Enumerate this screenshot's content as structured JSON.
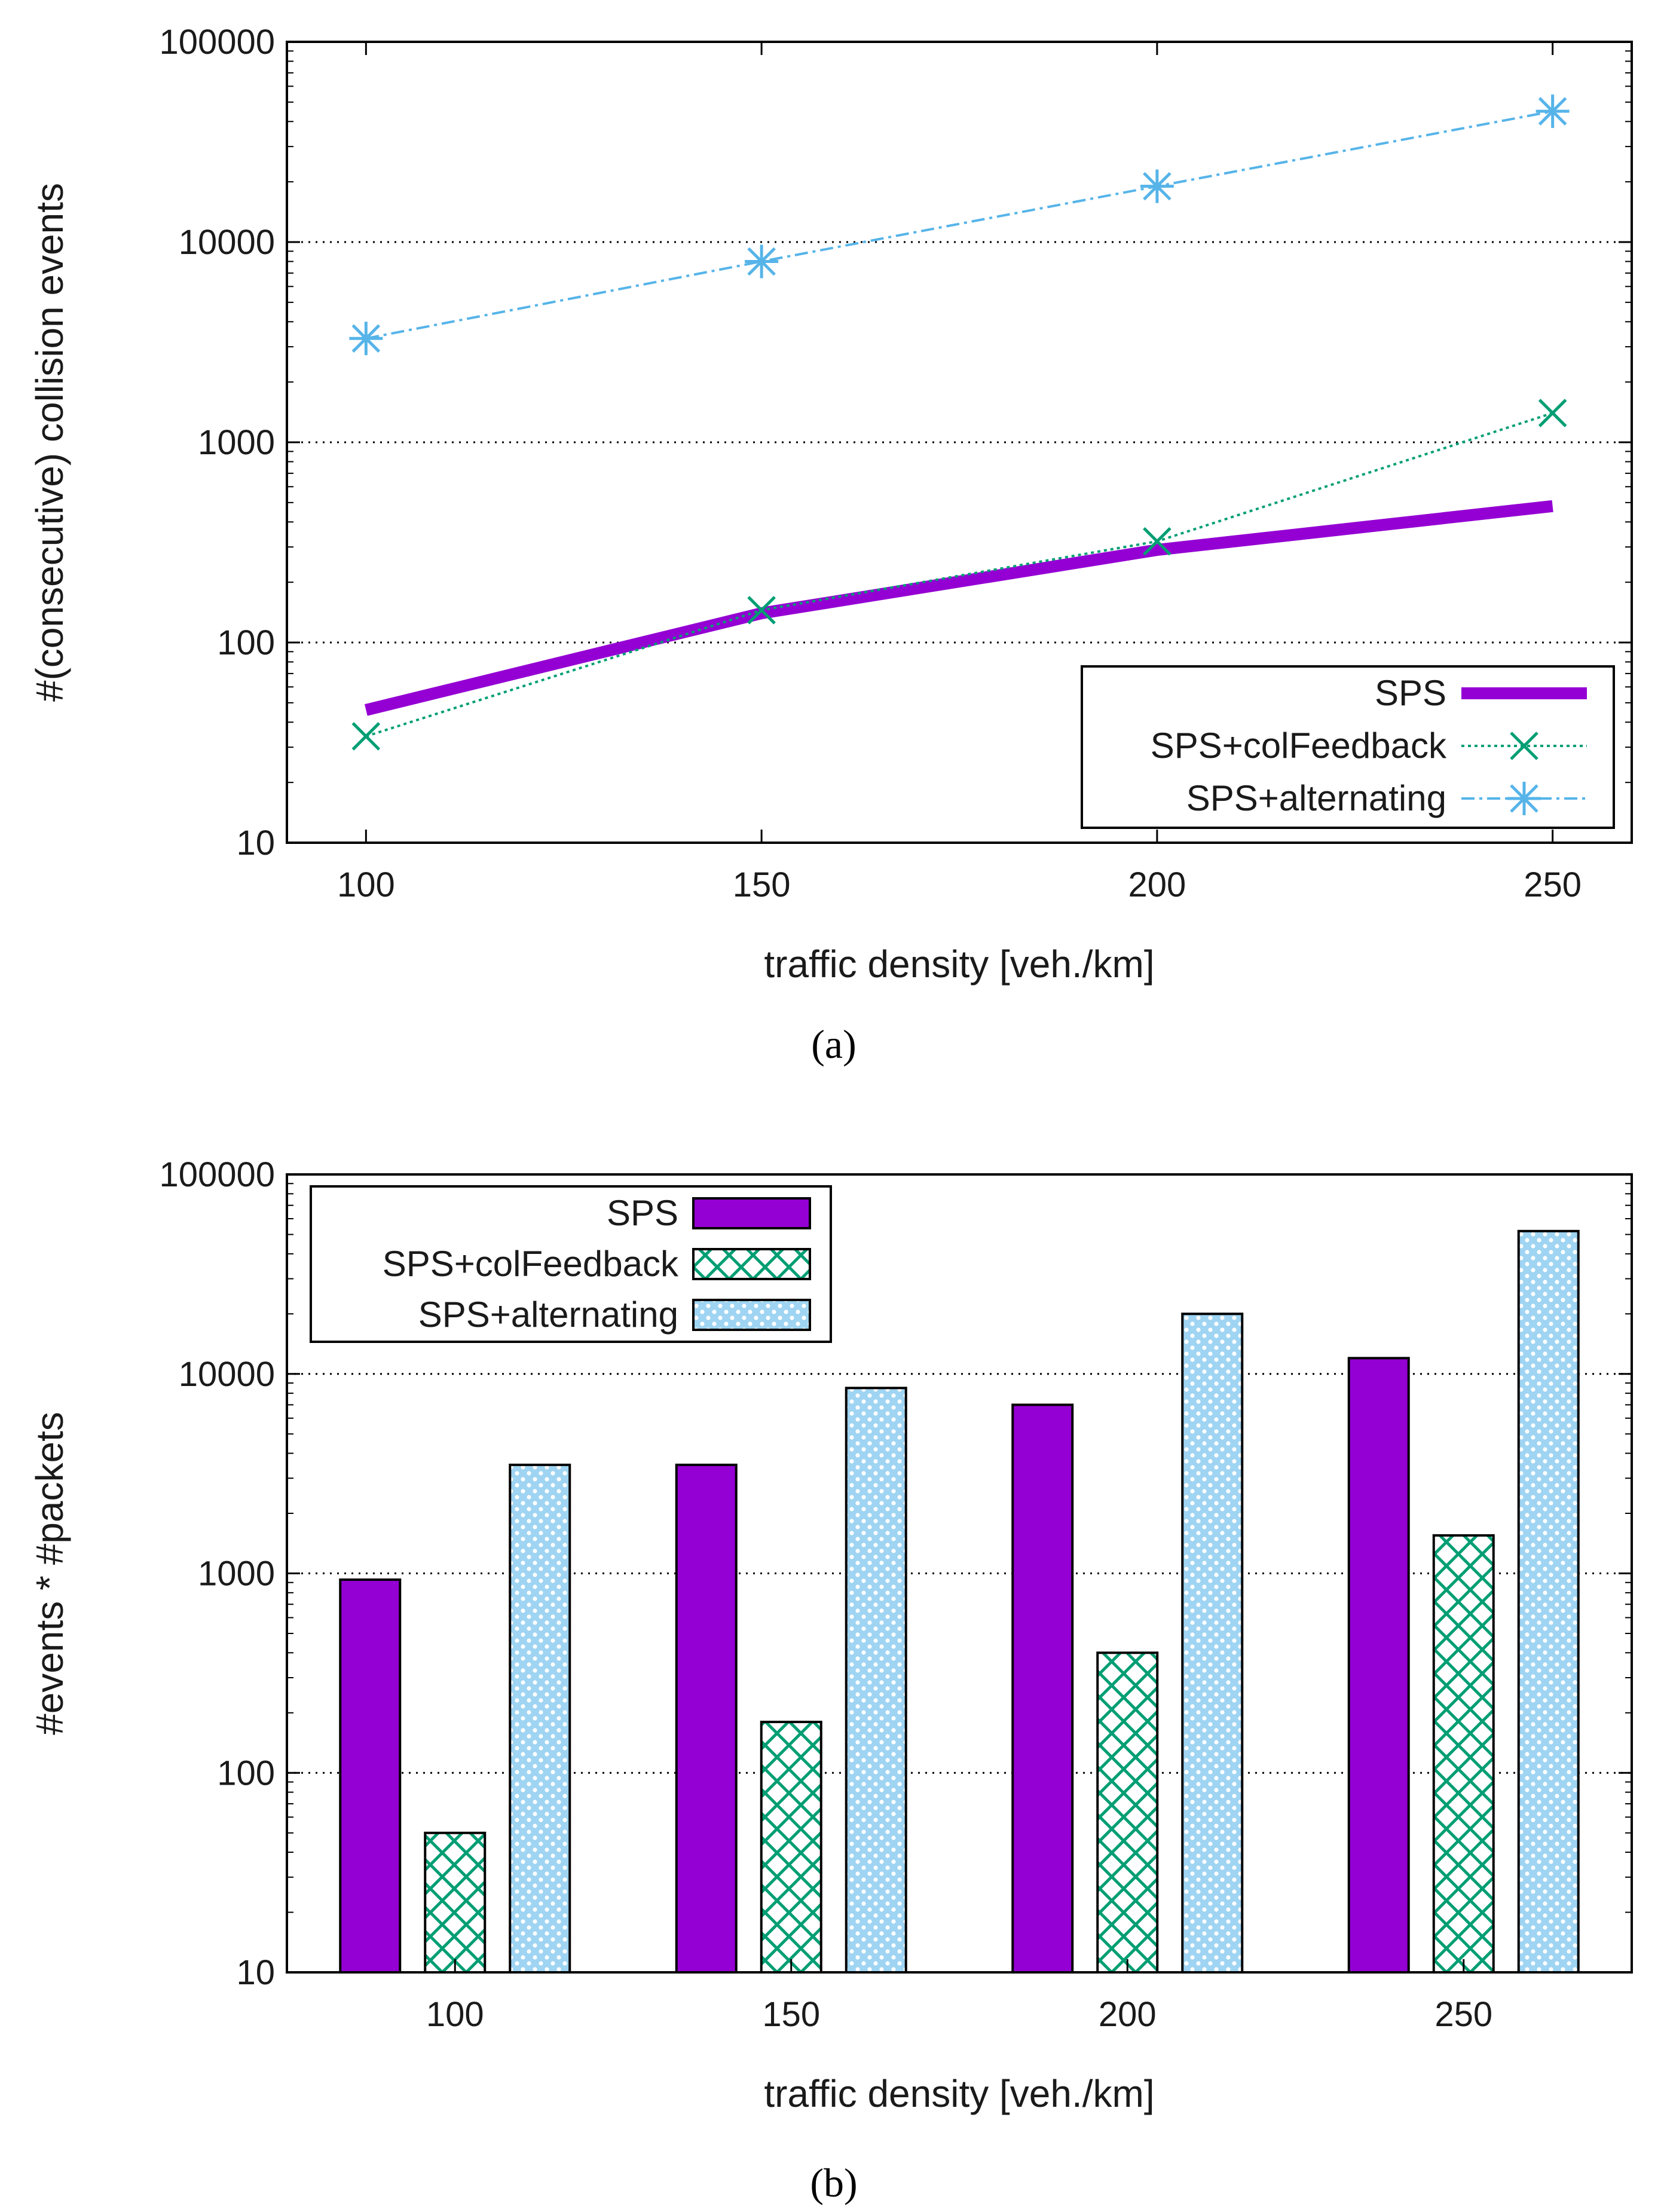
{
  "colors": {
    "sps": "#9400d3",
    "colfeedback": "#009e73",
    "alternating": "#56b4e9",
    "grid": "#000000",
    "frame": "#000000"
  },
  "chart_data": [
    {
      "type": "line",
      "caption": "(a)",
      "title": "",
      "xlabel": "traffic density [veh./km]",
      "ylabel": "#(consecutive) collision events",
      "yscale": "log",
      "xlim": [
        90,
        260
      ],
      "ylim": [
        10,
        100000
      ],
      "x": [
        100,
        150,
        200,
        250
      ],
      "xticks": [
        "100",
        "150",
        "200",
        "250"
      ],
      "yticks": [
        "10",
        "100",
        "1000",
        "10000",
        "100000"
      ],
      "grid": "horizontal dotted",
      "legend_position": "bottom-right",
      "series": [
        {
          "name": "SPS",
          "values": [
            46,
            140,
            290,
            480
          ]
        },
        {
          "name": "SPS+colFeedback",
          "values": [
            34,
            145,
            320,
            1400
          ]
        },
        {
          "name": "SPS+alternating",
          "values": [
            3300,
            8000,
            19000,
            45000
          ]
        }
      ]
    },
    {
      "type": "bar",
      "caption": "(b)",
      "title": "",
      "xlabel": "traffic density [veh./km]",
      "ylabel": "#events * #packets",
      "yscale": "log",
      "ylim": [
        10,
        100000
      ],
      "categories": [
        "100",
        "150",
        "200",
        "250"
      ],
      "yticks": [
        "10",
        "100",
        "1000",
        "10000",
        "100000"
      ],
      "grid": "horizontal dotted",
      "legend_position": "top-left",
      "series": [
        {
          "name": "SPS",
          "values": [
            930,
            3500,
            7000,
            12000
          ]
        },
        {
          "name": "SPS+colFeedback",
          "values": [
            50,
            180,
            400,
            1550
          ]
        },
        {
          "name": "SPS+alternating",
          "values": [
            3500,
            8500,
            20000,
            52000
          ]
        }
      ]
    }
  ]
}
